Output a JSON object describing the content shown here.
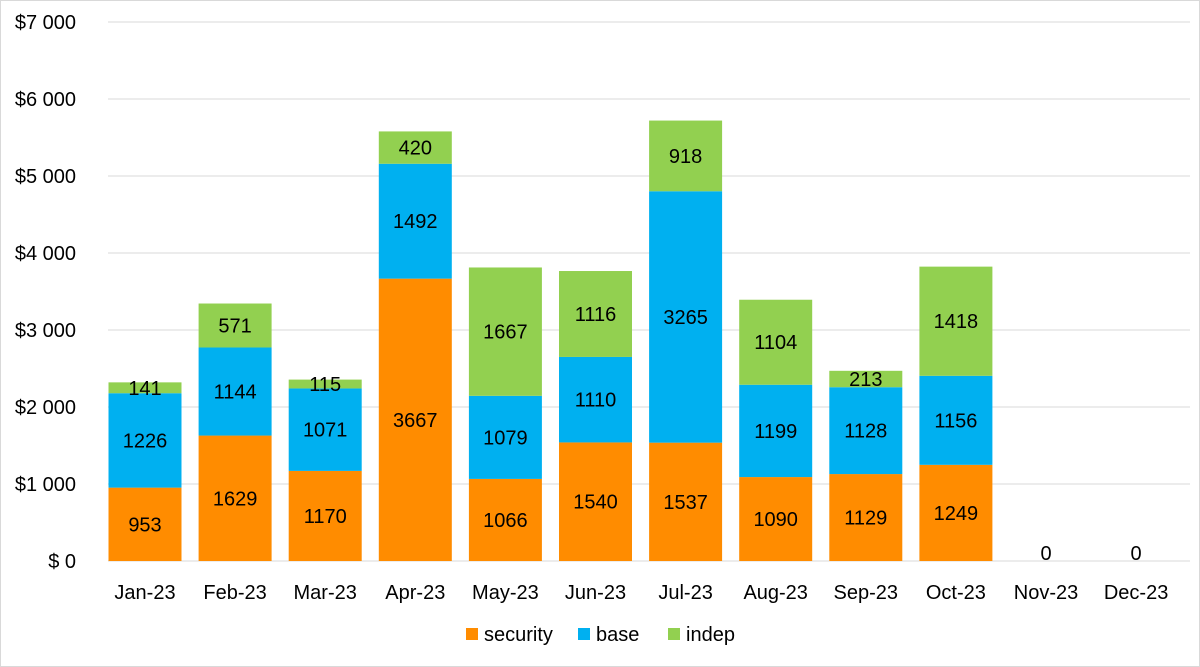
{
  "chart_data": {
    "type": "bar",
    "stacked": true,
    "title": "",
    "xlabel": "",
    "ylabel": "",
    "categories": [
      "Jan-23",
      "Feb-23",
      "Mar-23",
      "Apr-23",
      "May-23",
      "Jun-23",
      "Jul-23",
      "Aug-23",
      "Sep-23",
      "Oct-23",
      "Nov-23",
      "Dec-23"
    ],
    "series": [
      {
        "name": "security",
        "color": "#FF8C00",
        "values": [
          953,
          1629,
          1170,
          3667,
          1066,
          1540,
          1537,
          1090,
          1129,
          1249,
          0,
          0
        ]
      },
      {
        "name": "base",
        "color": "#00B0F0",
        "values": [
          1226,
          1144,
          1071,
          1492,
          1079,
          1110,
          3265,
          1199,
          1128,
          1156,
          0,
          0
        ]
      },
      {
        "name": "indep",
        "color": "#92D050",
        "values": [
          141,
          571,
          115,
          420,
          1667,
          1116,
          918,
          1104,
          213,
          1418,
          0,
          0
        ]
      }
    ],
    "zero_labels": [
      "0",
      "0"
    ],
    "ylim": [
      0,
      7000
    ],
    "y_ticks": [
      0,
      1000,
      2000,
      3000,
      4000,
      5000,
      6000,
      7000
    ],
    "y_tick_labels": [
      "$ 0",
      "$1 000",
      "$2 000",
      "$3 000",
      "$4 000",
      "$5 000",
      "$6 000",
      "$7 000"
    ],
    "grid": true,
    "legend_position": "bottom",
    "gridline_color": "#d9d9d9"
  }
}
